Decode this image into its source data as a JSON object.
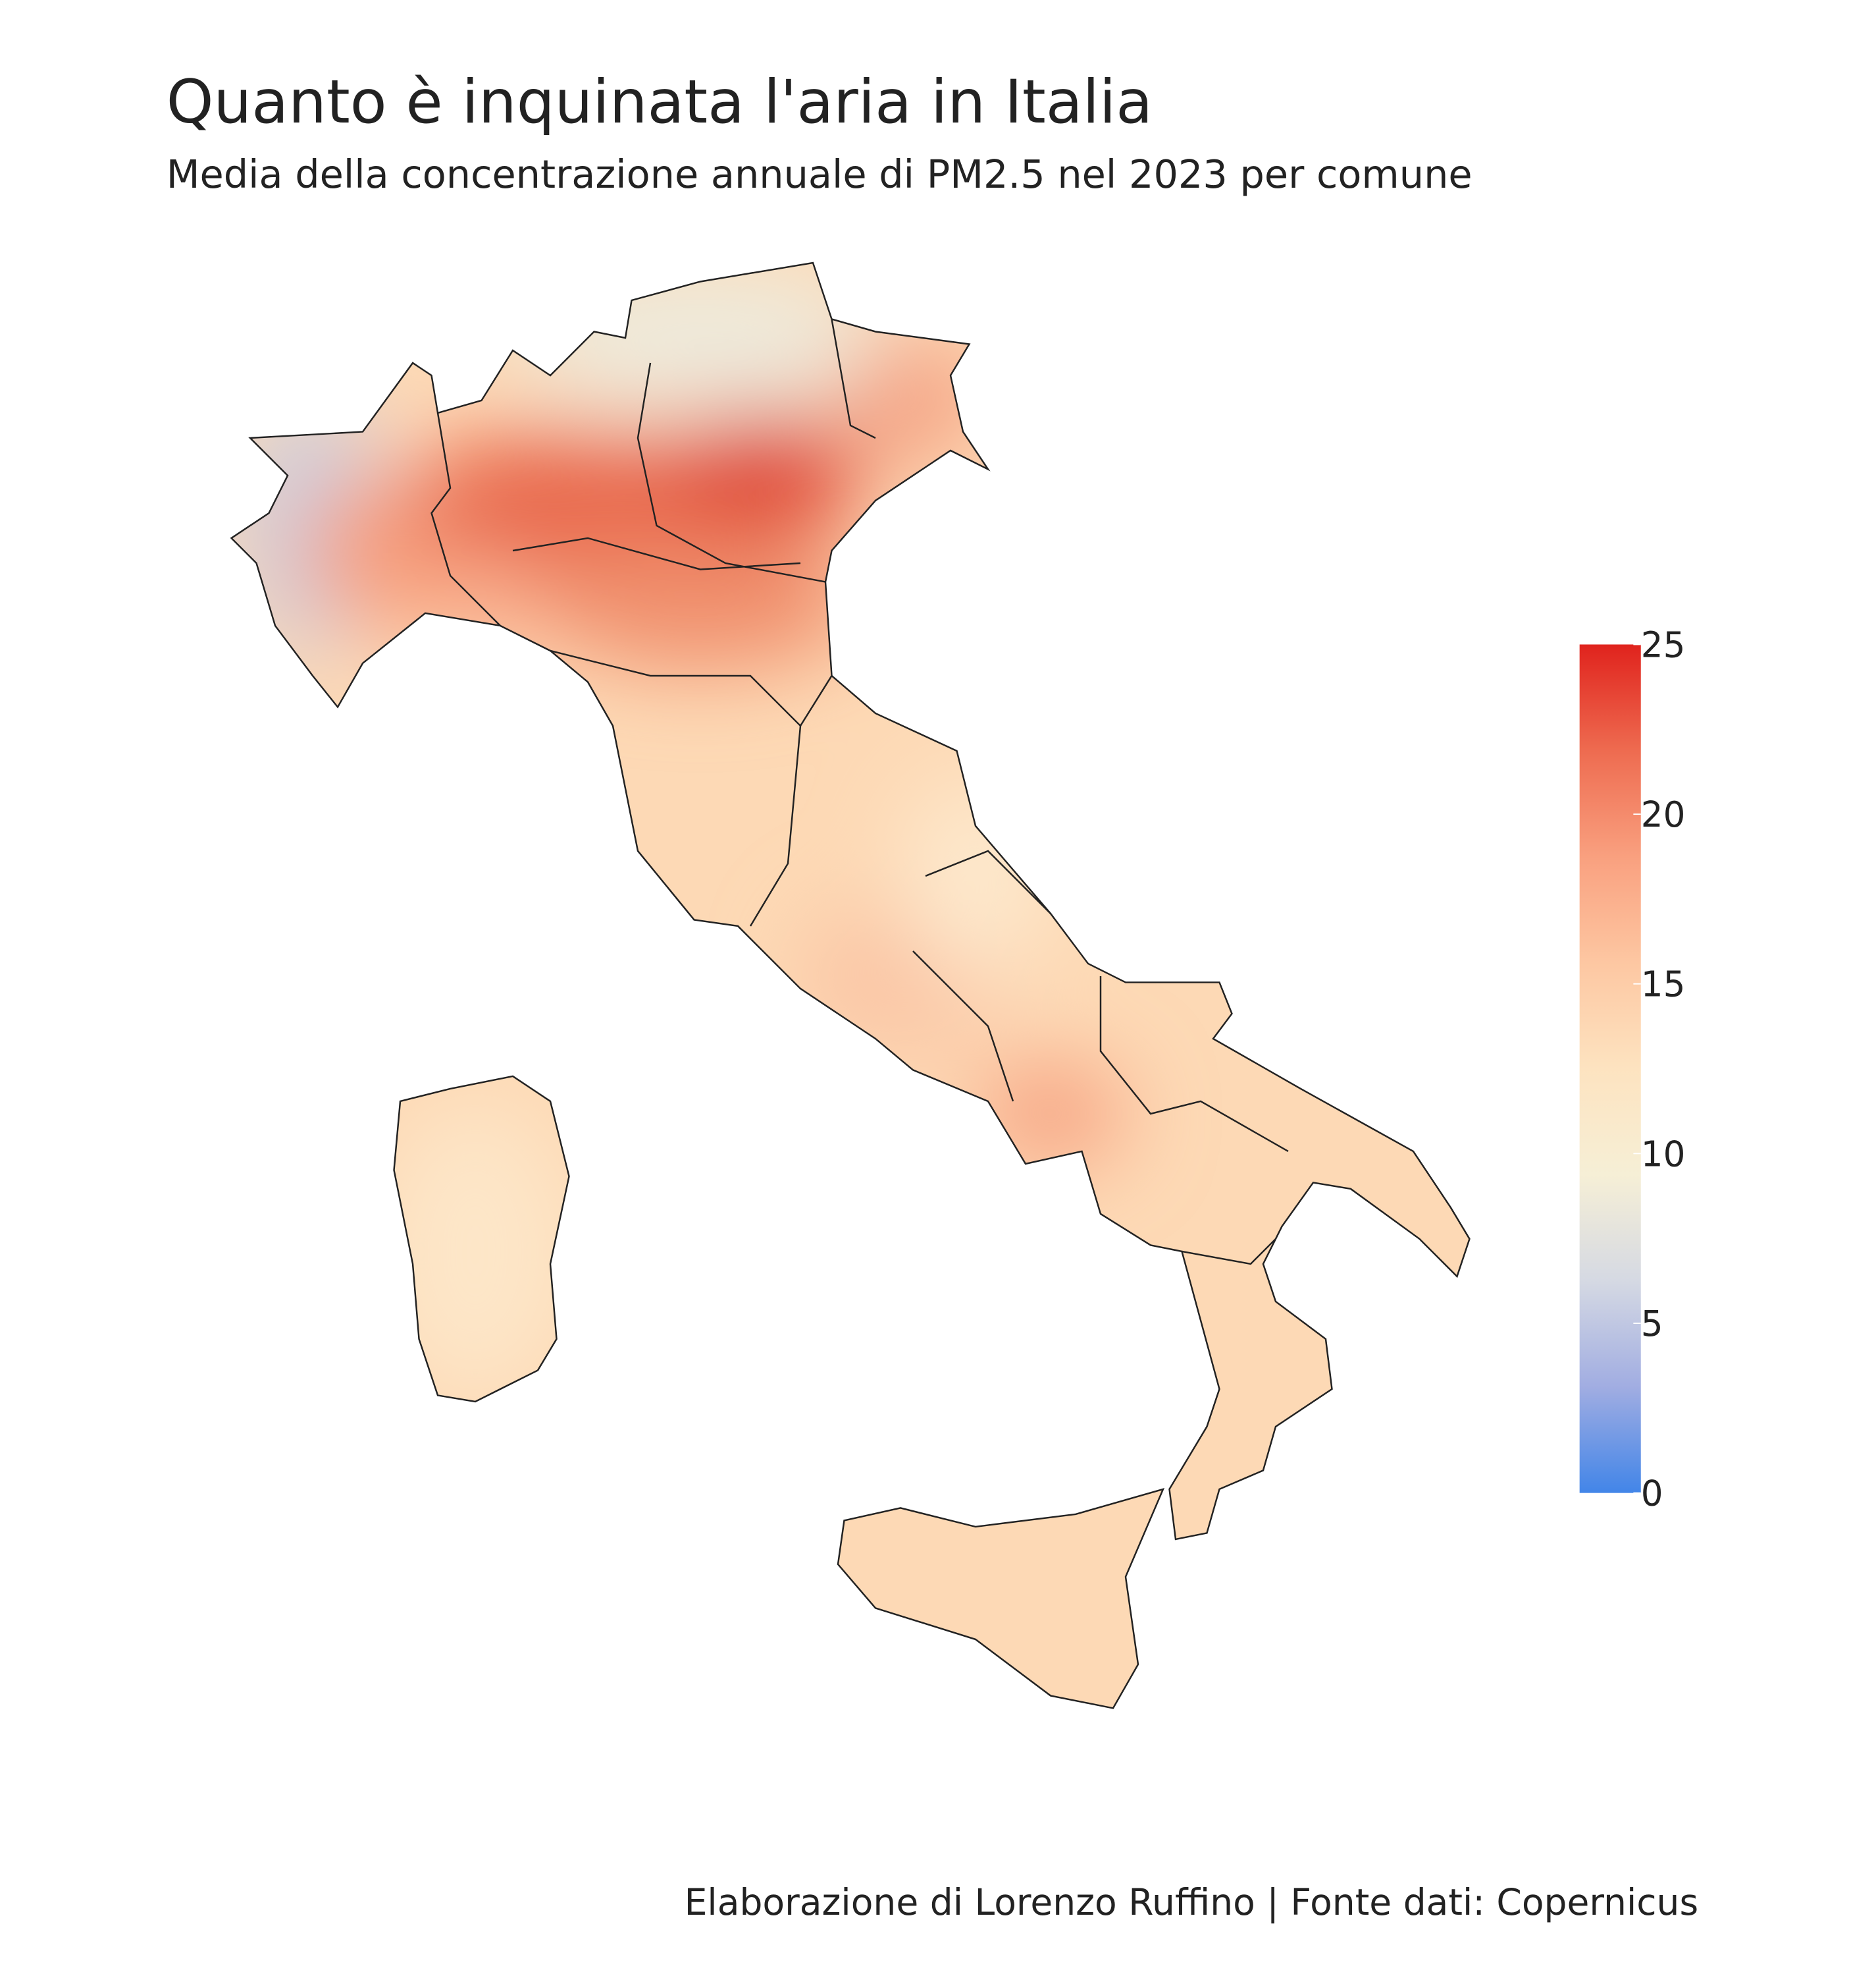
{
  "chart_data": {
    "type": "choropleth",
    "title": "Quanto è inquinata l'aria in Italia",
    "subtitle": "Media della concentrazione annuale di PM2.5 nel 2023 per comune",
    "caption": "Elaborazione di Lorenzo Ruffino | Fonte dati: Copernicus",
    "colorbar": {
      "lim": [
        0,
        25
      ],
      "ticks": [
        0,
        5,
        10,
        15,
        20,
        25
      ],
      "colors": [
        "#4285e8",
        "#a1ade2",
        "#d5d9e3",
        "#f6efd6",
        "#fde3c0",
        "#fdc7a2",
        "#f9a07f",
        "#ee6b50",
        "#e0231d"
      ]
    }
  }
}
